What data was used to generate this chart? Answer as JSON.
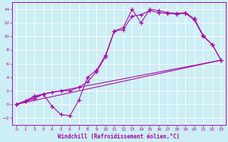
{
  "title": "",
  "xlabel": "Windchill (Refroidissement éolien,°C)",
  "ylabel": "",
  "bg_color": "#cceef5",
  "line_color": "#aa00aa",
  "xlim": [
    -0.5,
    23.5
  ],
  "ylim": [
    -3.0,
    15.0
  ],
  "xticks": [
    0,
    1,
    2,
    3,
    4,
    5,
    6,
    7,
    8,
    9,
    10,
    11,
    12,
    13,
    14,
    15,
    16,
    17,
    18,
    19,
    20,
    21,
    22,
    23
  ],
  "yticks": [
    -2,
    0,
    2,
    4,
    6,
    8,
    10,
    12,
    14
  ],
  "line1_x": [
    0,
    1,
    2,
    3,
    4,
    5,
    6,
    7,
    8,
    9,
    10,
    11,
    12,
    13,
    14,
    15,
    16,
    17,
    18,
    19,
    20,
    21,
    22,
    23
  ],
  "line1_y": [
    0.0,
    0.5,
    1.2,
    1.5,
    -0.3,
    -1.5,
    -1.7,
    0.6,
    4.0,
    5.0,
    7.2,
    10.8,
    11.3,
    14.0,
    12.0,
    14.0,
    13.8,
    13.5,
    13.4,
    13.5,
    12.6,
    10.1,
    8.8,
    6.5
  ],
  "line2_x": [
    0,
    1,
    2,
    3,
    4,
    5,
    6,
    7,
    8,
    9,
    10,
    11,
    12,
    13,
    14,
    15,
    16,
    17,
    18,
    19,
    20,
    21,
    22,
    23
  ],
  "line2_y": [
    0.0,
    0.4,
    0.8,
    1.5,
    1.8,
    2.0,
    2.0,
    2.5,
    3.3,
    4.8,
    7.0,
    10.8,
    11.0,
    13.0,
    13.2,
    13.8,
    13.5,
    13.4,
    13.3,
    13.4,
    12.4,
    10.0,
    8.8,
    6.5
  ],
  "line3_x": [
    0,
    23
  ],
  "line3_y": [
    0.0,
    6.5
  ],
  "line4_x": [
    0,
    3,
    23
  ],
  "line4_y": [
    0.0,
    1.5,
    6.5
  ]
}
